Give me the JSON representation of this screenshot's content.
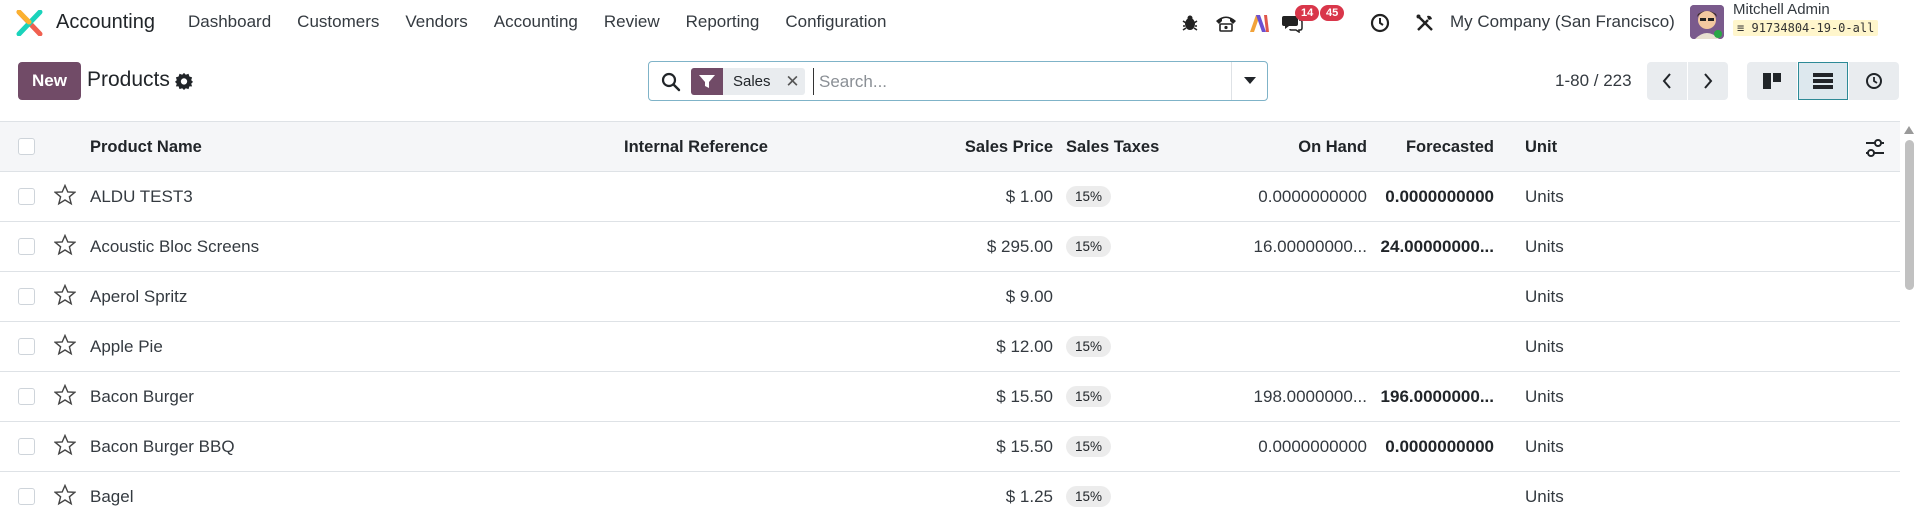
{
  "navbar": {
    "app_name": "Accounting",
    "menu": [
      "Dashboard",
      "Customers",
      "Vendors",
      "Accounting",
      "Review",
      "Reporting",
      "Configuration"
    ],
    "messages_count": "14",
    "activities_count": "45",
    "company": "My Company (San Francisco)",
    "user_name": "Mitchell Admin",
    "db_name": "91734804-19-0-all"
  },
  "control_panel": {
    "new_label": "New",
    "title": "Products",
    "facet_label": "Sales",
    "search_placeholder": "Search...",
    "pager": "1-80 / 223"
  },
  "list": {
    "columns": {
      "name": "Product Name",
      "internal_ref": "Internal Reference",
      "price": "Sales Price",
      "taxes": "Sales Taxes",
      "on_hand": "On Hand",
      "forecasted": "Forecasted",
      "unit": "Unit"
    },
    "rows": [
      {
        "name": "ALDU TEST3",
        "price": "$ 1.00",
        "tax": "15%",
        "on_hand": "0.0000000000",
        "forecasted": "0.0000000000",
        "unit": "Units"
      },
      {
        "name": "Acoustic Bloc Screens",
        "price": "$ 295.00",
        "tax": "15%",
        "on_hand": "16.00000000...",
        "forecasted": "24.00000000...",
        "unit": "Units"
      },
      {
        "name": "Aperol Spritz",
        "price": "$ 9.00",
        "tax": "",
        "on_hand": "",
        "forecasted": "",
        "unit": "Units"
      },
      {
        "name": "Apple Pie",
        "price": "$ 12.00",
        "tax": "15%",
        "on_hand": "",
        "forecasted": "",
        "unit": "Units"
      },
      {
        "name": "Bacon Burger",
        "price": "$ 15.50",
        "tax": "15%",
        "on_hand": "198.0000000...",
        "forecasted": "196.0000000...",
        "unit": "Units"
      },
      {
        "name": "Bacon Burger BBQ",
        "price": "$ 15.50",
        "tax": "15%",
        "on_hand": "0.0000000000",
        "forecasted": "0.0000000000",
        "unit": "Units"
      },
      {
        "name": "Bagel",
        "price": "$ 1.25",
        "tax": "15%",
        "on_hand": "",
        "forecasted": "",
        "unit": "Units"
      }
    ]
  },
  "colors": {
    "brand": "#714b67",
    "badge_red": "#d9364a",
    "active_view_border": "#2c8a97"
  }
}
